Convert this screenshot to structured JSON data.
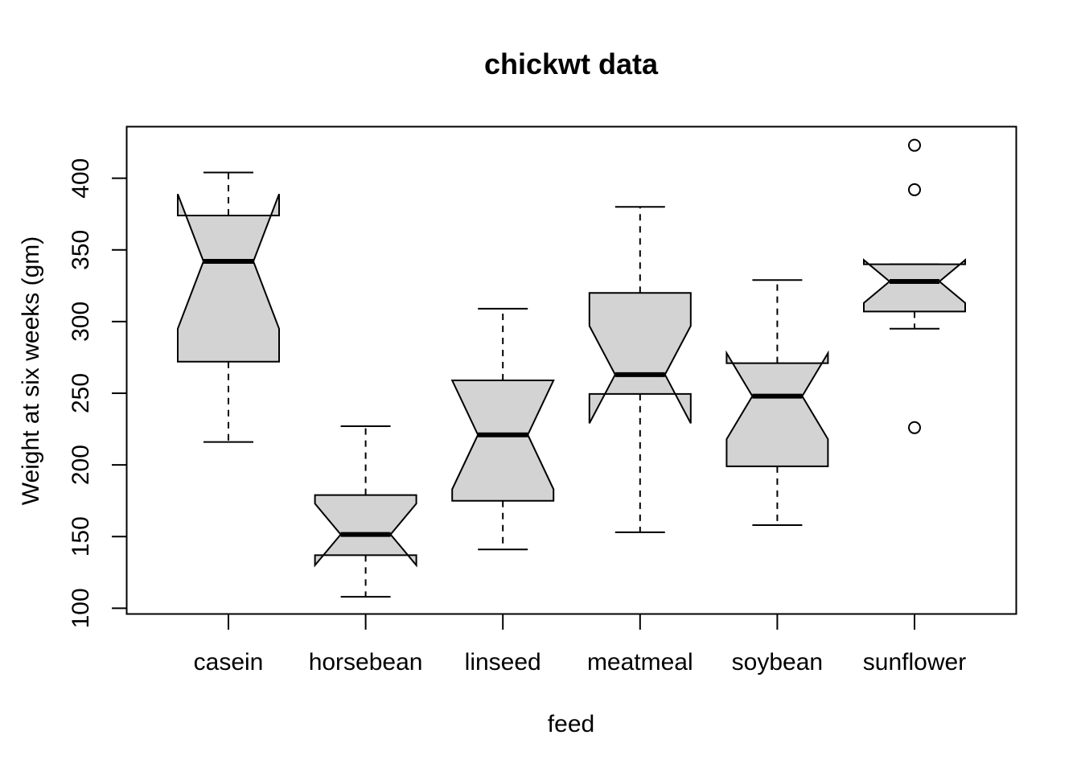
{
  "chart_data": {
    "type": "boxplot",
    "notched": true,
    "title": "chickwt data",
    "xlabel": "feed",
    "ylabel": "Weight at six weeks (gm)",
    "ylim": [
      96,
      436
    ],
    "yticks": [
      100,
      150,
      200,
      250,
      300,
      350,
      400
    ],
    "categories": [
      "casein",
      "horsebean",
      "linseed",
      "meatmeal",
      "soybean",
      "sunflower"
    ],
    "boxes": [
      {
        "name": "casein",
        "whisker_low": 216,
        "q1": 272,
        "median": 342,
        "q3": 374,
        "whisker_high": 404,
        "notch_low": 295,
        "notch_high": 389,
        "outliers": []
      },
      {
        "name": "horsebean",
        "whisker_low": 108,
        "q1": 137,
        "median": 151.5,
        "q3": 179,
        "whisker_high": 227,
        "notch_low": 130,
        "notch_high": 173,
        "outliers": []
      },
      {
        "name": "linseed",
        "whisker_low": 141,
        "q1": 175,
        "median": 221,
        "q3": 259,
        "whisker_high": 309,
        "notch_low": 183,
        "notch_high": 259,
        "outliers": []
      },
      {
        "name": "meatmeal",
        "whisker_low": 153,
        "q1": 249.5,
        "median": 263,
        "q3": 320,
        "whisker_high": 380,
        "notch_low": 229,
        "notch_high": 297,
        "outliers": []
      },
      {
        "name": "soybean",
        "whisker_low": 158,
        "q1": 199,
        "median": 248,
        "q3": 271,
        "whisker_high": 329,
        "notch_low": 218,
        "notch_high": 278,
        "outliers": []
      },
      {
        "name": "sunflower",
        "whisker_low": 295,
        "q1": 307,
        "median": 328,
        "q3": 340,
        "whisker_high": 340,
        "notch_low": 313,
        "notch_high": 343,
        "outliers": [
          423,
          392,
          226
        ]
      }
    ],
    "colors": {
      "box_fill": "#d3d3d3",
      "stroke": "#000000",
      "background": "#ffffff"
    },
    "grid": false,
    "legend": "none"
  }
}
